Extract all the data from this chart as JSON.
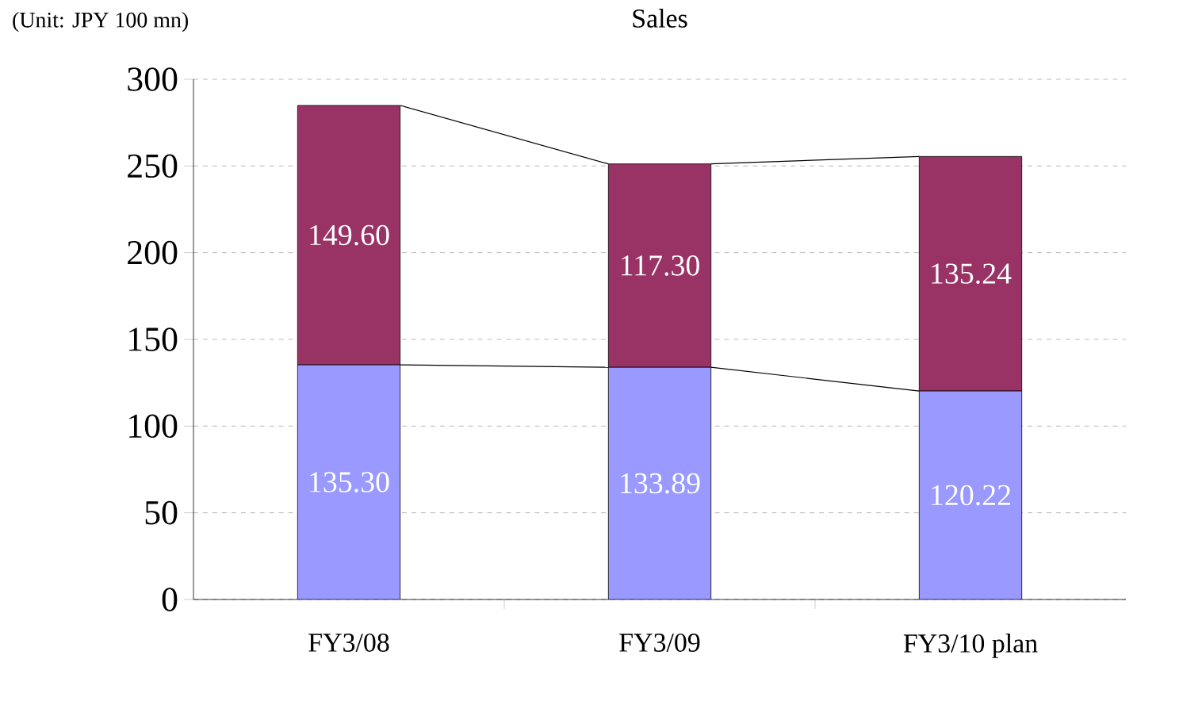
{
  "chart_data": {
    "type": "bar",
    "stacked": true,
    "title": "Sales",
    "annotations": [
      "(Unit: JPY 100 mn)"
    ],
    "categories": [
      "FY3/08",
      "FY3/09",
      "FY3/10 plan"
    ],
    "series": [
      {
        "color": "#9999ff",
        "values": [
          135.3,
          133.89,
          120.22
        ],
        "value_labels": [
          "135.30",
          "133.89",
          "120.22"
        ]
      },
      {
        "color": "#993366",
        "values": [
          149.6,
          117.3,
          135.24
        ],
        "value_labels": [
          "149.60",
          "117.30",
          "135.24"
        ]
      }
    ],
    "ylim": [
      0,
      300
    ],
    "yticks": [
      0,
      50,
      100,
      150,
      200,
      250,
      300
    ],
    "grid": "y"
  }
}
